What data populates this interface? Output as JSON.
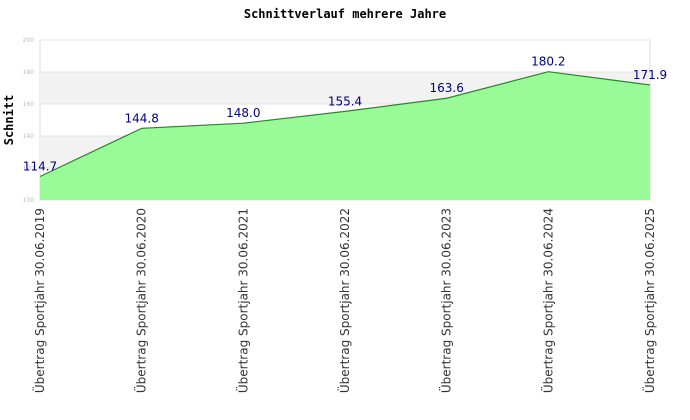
{
  "chart_data": {
    "type": "area",
    "title": "Schnittverlauf mehrere Jahre",
    "y_label": "Schnitt",
    "categories": [
      "Übertrag Sportjahr 30.06.2019",
      "Übertrag Sportjahr 30.06.2020",
      "Übertrag Sportjahr 30.06.2021",
      "Übertrag Sportjahr 30.06.2022",
      "Übertrag Sportjahr 30.06.2023",
      "Übertrag Sportjahr 30.06.2024",
      "Übertrag Sportjahr 30.06.2025"
    ],
    "values": [
      114.7,
      144.8,
      148.0,
      155.4,
      163.6,
      180.2,
      171.9
    ],
    "value_labels": [
      "114.7",
      "144.8",
      "148.0",
      "155.4",
      "163.6",
      "180.2",
      "171.9"
    ],
    "color": "#98fb98",
    "line_color": "#228b22",
    "label_color": "#000080",
    "ylim": [
      100,
      200
    ],
    "yticks": [
      100,
      120,
      140,
      160,
      180,
      200
    ],
    "grid": true
  }
}
